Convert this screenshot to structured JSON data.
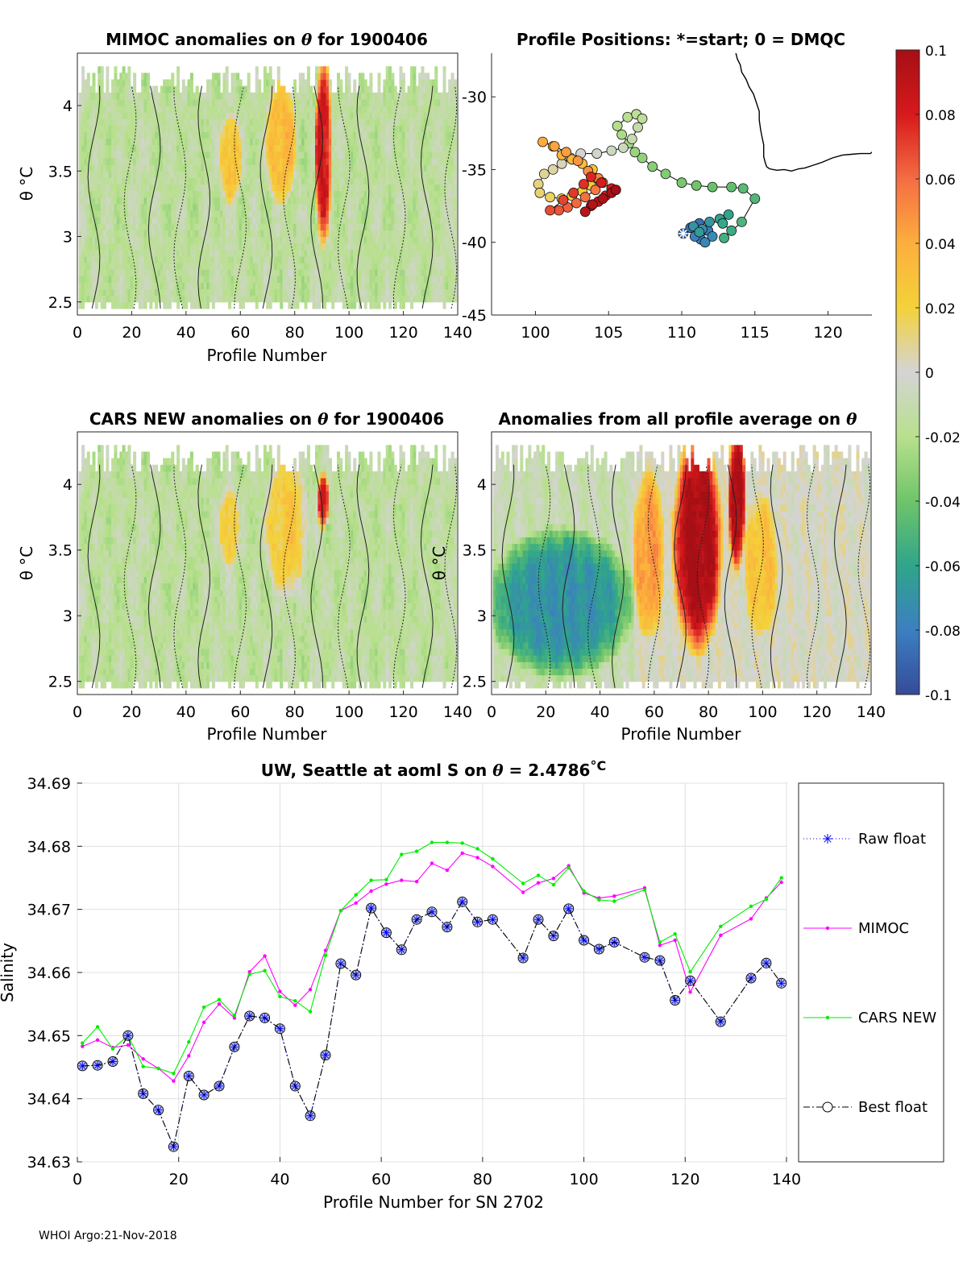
{
  "footer": "WHOI Argo:21-Nov-2018",
  "panels": {
    "mimoc": {
      "title_prefix": "MIMOC anomalies on ",
      "title_theta": "θ",
      "title_suffix": "  for 1900406",
      "xlabel": "Profile Number",
      "ylabel": "θ °C"
    },
    "positions": {
      "title": "Profile Positions: *=start; 0 = DMQC"
    },
    "cars": {
      "title_prefix": "CARS NEW anomalies on ",
      "title_theta": "θ",
      "title_suffix": " for 1900406",
      "xlabel": "Profile Number",
      "ylabel": "θ °C"
    },
    "allavg": {
      "title_prefix": "Anomalies from all profile average on ",
      "title_theta": "θ",
      "xlabel": "Profile Number",
      "ylabel": "θ °C"
    }
  },
  "colorbar": {
    "ticks": [
      "0.1",
      "0.08",
      "0.06",
      "0.04",
      "0.02",
      "0",
      "-0.02",
      "-0.04",
      "-0.06",
      "-0.08",
      "-0.1"
    ]
  },
  "chart_data": [
    {
      "id": "mimoc",
      "type": "heatmap",
      "title": "MIMOC anomalies on θ for 1900406",
      "xlabel": "Profile Number",
      "ylabel": "θ °C",
      "xlim": [
        0,
        140
      ],
      "ylim": [
        2.4,
        4.4
      ],
      "xticks": [
        "0",
        "20",
        "40",
        "60",
        "80",
        "100",
        "120",
        "140"
      ],
      "yticks": [
        "2.5",
        "3",
        "3.5",
        "4"
      ],
      "anomaly_features": [
        {
          "label": "warm",
          "x": [
            53,
            60
          ],
          "theta": [
            3.3,
            3.85
          ],
          "value": 0.045
        },
        {
          "label": "warm",
          "x": [
            70,
            80
          ],
          "theta": [
            3.3,
            4.1
          ],
          "value": 0.05
        },
        {
          "label": "warm",
          "x": [
            88,
            93
          ],
          "theta": [
            3.0,
            4.25
          ],
          "value": 0.1
        }
      ]
    },
    {
      "id": "positions",
      "type": "scatter",
      "title": "Profile Positions: *=start; 0 = DMQC",
      "xlim": [
        97,
        123
      ],
      "ylim": [
        -45,
        -27
      ],
      "xticks": [
        "100",
        "105",
        "110",
        "115",
        "120"
      ],
      "yticks": [
        "-30",
        "-35",
        "-40",
        "-45"
      ],
      "start": [
        110.1,
        -39.4
      ],
      "track_lon": [
        110.1,
        110.6,
        111.2,
        111.8,
        111.3,
        110.9,
        111.6,
        112.1,
        111.4,
        110.8,
        111.9,
        111.2,
        112.6,
        113.2,
        112.8,
        113.4,
        112.9,
        114.1,
        115.0,
        114.2,
        113.4,
        112.1,
        111.0,
        110.0,
        108.9,
        108.0,
        107.3,
        106.8,
        106.4,
        105.9,
        105.6,
        106.3,
        106.9,
        107.3,
        107.0,
        106.6,
        106.0,
        105.2,
        104.2,
        103.1,
        102.4,
        101.8,
        101.2,
        100.6,
        100.2,
        100.3,
        101.0,
        101.8,
        102.5,
        103.2,
        103.8,
        104.2,
        103.9,
        103.2,
        102.5,
        101.8,
        101.2,
        100.5,
        101.3,
        102.1,
        102.9,
        103.6,
        104.3,
        104.6,
        104.1,
        103.4,
        102.8,
        102.2,
        101.6,
        101.0,
        101.9,
        102.6,
        103.3,
        103.8,
        104.5,
        105.2,
        104.8,
        104.3,
        103.8,
        103.4,
        103.9,
        104.6,
        105.2,
        105.5
      ],
      "track_lat": [
        -39.4,
        -39.0,
        -38.7,
        -39.2,
        -39.8,
        -39.6,
        -40.0,
        -39.6,
        -39.1,
        -38.9,
        -38.6,
        -39.3,
        -38.4,
        -38.1,
        -38.7,
        -39.2,
        -39.7,
        -38.6,
        -37.0,
        -36.3,
        -36.2,
        -36.2,
        -36.1,
        -35.9,
        -35.3,
        -34.8,
        -34.2,
        -33.8,
        -33.2,
        -32.6,
        -32.0,
        -31.4,
        -31.2,
        -31.5,
        -32.1,
        -32.9,
        -33.5,
        -33.7,
        -33.9,
        -33.9,
        -34.2,
        -34.6,
        -35.0,
        -35.3,
        -36.0,
        -36.6,
        -36.9,
        -37.0,
        -36.8,
        -36.5,
        -36.1,
        -35.6,
        -35.0,
        -34.6,
        -34.3,
        -34.0,
        -33.4,
        -33.1,
        -33.4,
        -33.8,
        -34.4,
        -35.1,
        -35.6,
        -35.9,
        -36.4,
        -36.9,
        -37.3,
        -37.6,
        -37.8,
        -37.8,
        -37.1,
        -36.6,
        -36.0,
        -35.5,
        -35.9,
        -36.3,
        -36.8,
        -37.2,
        -37.5,
        -37.9,
        -37.4,
        -37.0,
        -36.6,
        -36.4
      ],
      "coastline_lon": [
        113.6,
        113.7,
        113.7,
        113.8,
        114.0,
        114.1,
        114.4,
        114.6,
        114.9,
        115.1,
        115.3,
        115.3,
        115.4,
        115.5,
        115.6,
        115.6,
        115.6,
        115.7,
        115.8,
        116.0,
        116.5,
        117.0,
        117.5,
        118.0,
        118.4,
        119.0,
        119.6,
        120.3,
        121.0,
        121.6,
        122.2,
        122.9,
        123.0
      ],
      "coastline_lat": [
        -26.0,
        -26.5,
        -27.0,
        -27.4,
        -27.8,
        -28.3,
        -28.8,
        -29.3,
        -29.8,
        -30.4,
        -31.0,
        -31.6,
        -32.3,
        -32.8,
        -33.3,
        -33.6,
        -34.1,
        -34.5,
        -34.8,
        -34.95,
        -35.05,
        -35.0,
        -35.1,
        -34.95,
        -34.9,
        -34.7,
        -34.5,
        -34.2,
        -34.0,
        -33.95,
        -33.9,
        -33.9,
        -33.8
      ]
    },
    {
      "id": "cars",
      "type": "heatmap",
      "title": "CARS NEW anomalies on θ for 1900406",
      "xlabel": "Profile Number",
      "ylabel": "θ °C",
      "xlim": [
        0,
        140
      ],
      "ylim": [
        2.4,
        4.4
      ],
      "xticks": [
        "0",
        "20",
        "40",
        "60",
        "80",
        "100",
        "120",
        "140"
      ],
      "yticks": [
        "2.5",
        "3",
        "3.5",
        "4"
      ],
      "anomaly_features": [
        {
          "label": "warm",
          "x": [
            53,
            59
          ],
          "theta": [
            3.4,
            3.9
          ],
          "value": 0.04
        },
        {
          "label": "warm",
          "x": [
            70,
            84
          ],
          "theta": [
            3.2,
            4.1
          ],
          "value": 0.04
        },
        {
          "label": "warm",
          "x": [
            89,
            92
          ],
          "theta": [
            3.7,
            4.0
          ],
          "value": 0.1
        }
      ]
    },
    {
      "id": "allavg",
      "type": "heatmap",
      "title": "Anomalies from all profile average on θ",
      "xlabel": "Profile Number",
      "ylabel": "θ °C",
      "xlim": [
        0,
        140
      ],
      "ylim": [
        2.4,
        4.4
      ],
      "xticks": [
        "0",
        "20",
        "40",
        "60",
        "80",
        "100",
        "120",
        "140"
      ],
      "yticks": [
        "2.5",
        "3",
        "3.5",
        "4"
      ],
      "anomaly_features": [
        {
          "label": "cold",
          "x": [
            1,
            50
          ],
          "theta": [
            2.6,
            3.55
          ],
          "value": -0.06
        },
        {
          "label": "warm",
          "x": [
            53,
            63
          ],
          "theta": [
            2.9,
            4.0
          ],
          "value": 0.045
        },
        {
          "label": "warm",
          "x": [
            68,
            84
          ],
          "theta": [
            2.8,
            4.25
          ],
          "value": 0.1
        },
        {
          "label": "warm",
          "x": [
            88,
            93
          ],
          "theta": [
            3.4,
            4.35
          ],
          "value": 0.1
        },
        {
          "label": "warm",
          "x": [
            94,
            105
          ],
          "theta": [
            2.9,
            3.8
          ],
          "value": 0.03
        }
      ]
    },
    {
      "id": "salinity",
      "type": "line",
      "title": "UW, Seattle at aoml S on θ = 2.4786°C",
      "title_prefix": "UW, Seattle at aoml S on ",
      "title_theta": "θ",
      "title_value": " = 2.4786",
      "title_unit": "°C",
      "xlabel": "Profile Number for SN 2702",
      "ylabel": "Salinity",
      "xlim": [
        0,
        140
      ],
      "ylim": [
        34.63,
        34.69
      ],
      "xticks": [
        "0",
        "20",
        "40",
        "60",
        "80",
        "100",
        "120",
        "140"
      ],
      "yticks": [
        "34.69",
        "34.68",
        "34.67",
        "34.66",
        "34.65",
        "34.64",
        "34.63"
      ],
      "legend": [
        "Raw float",
        "MIMOC",
        "CARS NEW",
        "Best float"
      ],
      "x": [
        1,
        4,
        7,
        10,
        13,
        16,
        19,
        22,
        25,
        28,
        31,
        34,
        37,
        40,
        43,
        46,
        49,
        52,
        55,
        58,
        61,
        64,
        67,
        70,
        73,
        76,
        79,
        82,
        88,
        91,
        94,
        97,
        100,
        103,
        106,
        112,
        115,
        118,
        121,
        127,
        133,
        136,
        139
      ],
      "series": [
        {
          "name": "Raw float",
          "values": [
            34.6452,
            34.6453,
            34.6459,
            34.65,
            34.6408,
            34.6382,
            34.6324,
            34.6436,
            34.6406,
            34.642,
            34.6482,
            34.6531,
            34.6528,
            34.6511,
            34.642,
            34.6373,
            34.6469,
            34.6614,
            34.6596,
            34.6702,
            34.6663,
            34.6636,
            34.6684,
            34.6696,
            34.6672,
            34.6712,
            34.668,
            34.6684,
            34.6623,
            34.6684,
            34.6658,
            34.6701,
            34.6651,
            34.6637,
            34.6648,
            34.6624,
            34.6619,
            34.6556,
            34.6587,
            34.6522,
            34.6591,
            34.6615,
            34.6583
          ]
        },
        {
          "name": "MIMOC",
          "values": [
            34.6483,
            34.6493,
            34.6481,
            34.6485,
            34.6463,
            34.6448,
            34.6428,
            34.6468,
            34.6521,
            34.655,
            34.6528,
            34.6601,
            34.6626,
            34.657,
            34.6548,
            34.6573,
            34.6635,
            34.6698,
            34.671,
            34.6729,
            34.674,
            34.6746,
            34.6744,
            34.6773,
            34.6762,
            34.6789,
            34.6782,
            34.6768,
            34.6727,
            34.6742,
            34.6749,
            34.6769,
            34.6726,
            34.6718,
            34.6721,
            34.6734,
            34.6643,
            34.6651,
            34.6569,
            34.6659,
            34.6685,
            34.6718,
            34.6743
          ]
        },
        {
          "name": "CARS NEW",
          "values": [
            34.6488,
            34.6514,
            34.6479,
            34.65,
            34.6451,
            34.6448,
            34.644,
            34.649,
            34.6545,
            34.6557,
            34.6532,
            34.6597,
            34.6603,
            34.6562,
            34.6555,
            34.6538,
            34.6627,
            34.6698,
            34.6723,
            34.6746,
            34.6747,
            34.6787,
            34.6792,
            34.6806,
            34.6806,
            34.6805,
            34.6796,
            34.678,
            34.6741,
            34.6754,
            34.6739,
            34.6766,
            34.6729,
            34.6715,
            34.6713,
            34.6731,
            34.6648,
            34.6661,
            34.6601,
            34.6673,
            34.6705,
            34.6716,
            34.675
          ]
        },
        {
          "name": "Best float",
          "values": [
            34.6452,
            34.6453,
            34.6459,
            34.65,
            34.6408,
            34.6382,
            34.6324,
            34.6436,
            34.6406,
            34.642,
            34.6482,
            34.6531,
            34.6528,
            34.6511,
            34.642,
            34.6373,
            34.6469,
            34.6614,
            34.6596,
            34.6702,
            34.6663,
            34.6636,
            34.6684,
            34.6696,
            34.6672,
            34.6712,
            34.668,
            34.6684,
            34.6623,
            34.6684,
            34.6658,
            34.6701,
            34.6651,
            34.6637,
            34.6648,
            34.6624,
            34.6619,
            34.6556,
            34.6587,
            34.6522,
            34.6591,
            34.6615,
            34.6583
          ]
        }
      ]
    }
  ]
}
